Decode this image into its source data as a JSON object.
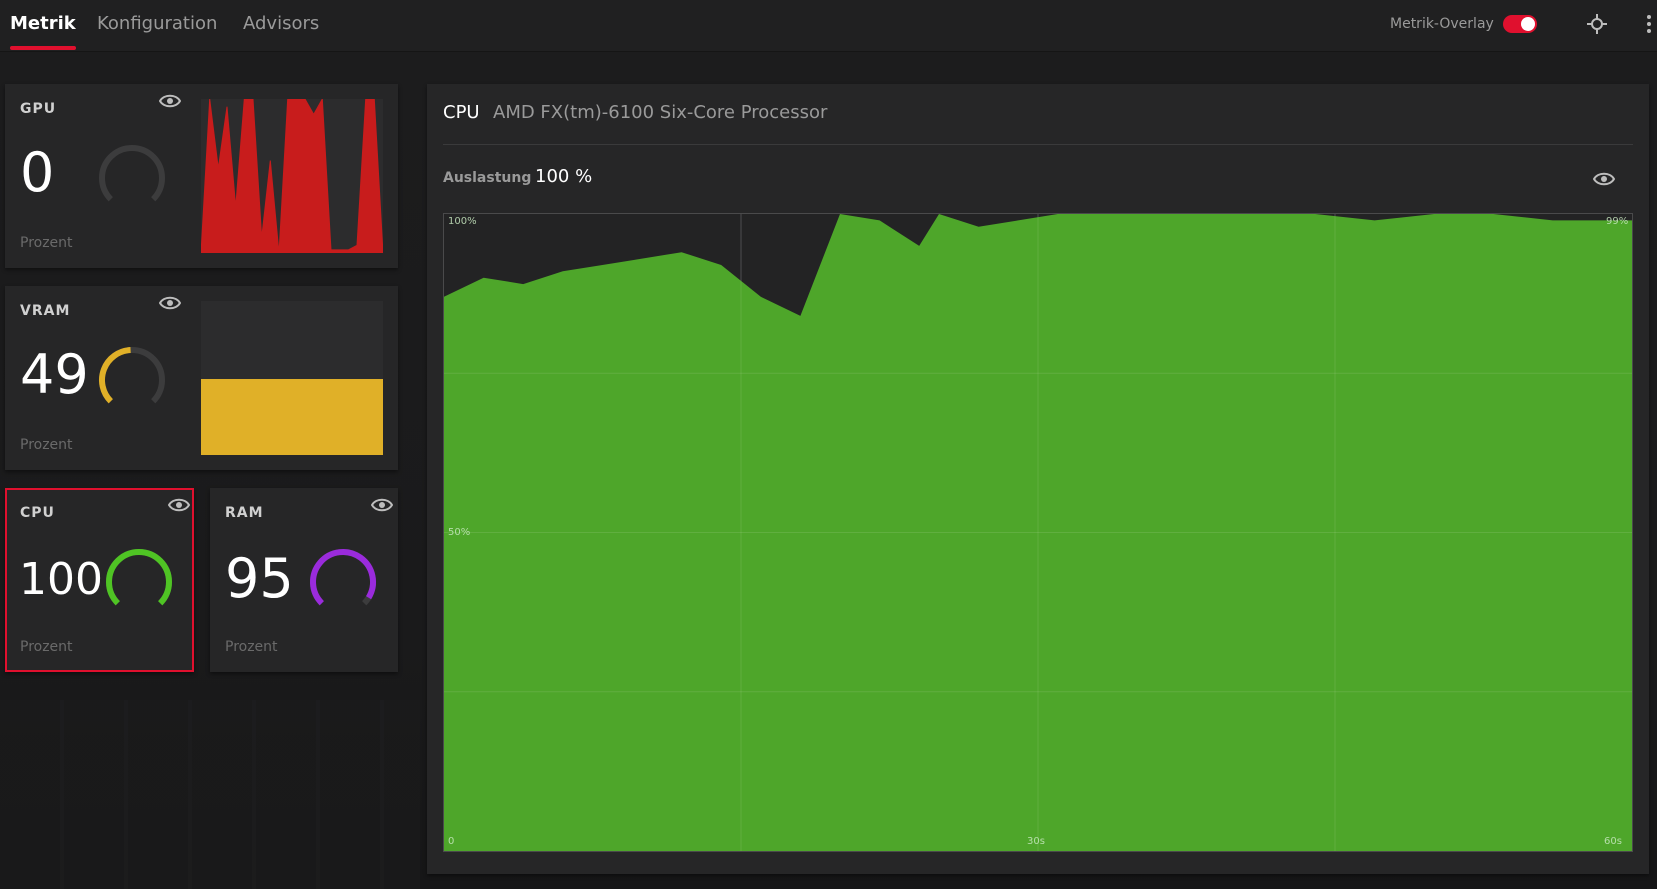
{
  "header": {
    "tabs": [
      {
        "label": "Metrik",
        "active": true
      },
      {
        "label": "Konfiguration",
        "active": false
      },
      {
        "label": "Advisors",
        "active": false
      }
    ],
    "overlay_label": "Metrik-Overlay",
    "overlay_enabled": true,
    "accent_color": "#e0102e"
  },
  "metrics": {
    "gpu": {
      "label": "GPU",
      "value": "0",
      "unit": "Prozent",
      "gauge_fraction": 0.0,
      "color": "#c81c1c",
      "spark": [
        0,
        100,
        55,
        95,
        30,
        100,
        100,
        10,
        60,
        0,
        100,
        100,
        100,
        90,
        100,
        2,
        2,
        2,
        5,
        100,
        100,
        0
      ]
    },
    "vram": {
      "label": "VRAM",
      "value": "49",
      "unit": "Prozent",
      "gauge_fraction": 0.49,
      "color": "#e0b028",
      "spark": [
        49,
        49,
        49,
        49,
        49,
        49,
        49,
        49,
        49,
        49,
        49,
        49,
        49,
        49,
        49,
        49,
        49,
        49,
        49,
        49
      ]
    },
    "cpu": {
      "label": "CPU",
      "value": "100",
      "unit": "Prozent",
      "gauge_fraction": 1.0,
      "color": "#4fc424",
      "selected": true
    },
    "ram": {
      "label": "RAM",
      "value": "95",
      "unit": "Prozent",
      "gauge_fraction": 0.95,
      "color": "#9a2bdc"
    }
  },
  "detail": {
    "title": "CPU",
    "processor": "AMD FX(tm)-6100 Six-Core Processor",
    "util_label": "Auslastung",
    "util_value": "100 %"
  },
  "chart_data": {
    "type": "area",
    "x": [
      0,
      2,
      4,
      6,
      8,
      10,
      12,
      14,
      16,
      18,
      20,
      22,
      24,
      25,
      27,
      29,
      31,
      33,
      35,
      37,
      40,
      44,
      47,
      50,
      53,
      56,
      60
    ],
    "y": [
      87,
      90,
      89,
      91,
      92,
      93,
      94,
      92,
      87,
      84,
      100,
      99,
      95,
      100,
      98,
      99,
      100,
      100,
      100,
      100,
      100,
      100,
      99,
      100,
      100,
      99,
      99
    ],
    "ylim": [
      0,
      100
    ],
    "xlim": [
      0,
      60
    ],
    "tick_labels": {
      "y_top": "100%",
      "y_mid": "50%",
      "x_start": "0",
      "x_mid": "30s",
      "x_end": "60s",
      "right_value": "99%"
    },
    "grid": true,
    "color": "#4ea62a"
  }
}
